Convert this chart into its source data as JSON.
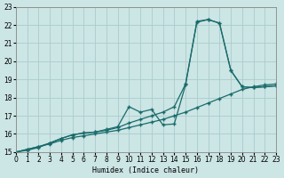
{
  "xlabel": "Humidex (Indice chaleur)",
  "bg_color": "#cce5e5",
  "grid_color": "#aacccc",
  "line_color": "#1a6b6b",
  "xlim": [
    0,
    23
  ],
  "ylim": [
    15,
    23
  ],
  "xticks": [
    0,
    1,
    2,
    3,
    4,
    5,
    6,
    7,
    8,
    9,
    10,
    11,
    12,
    13,
    14,
    15,
    16,
    17,
    18,
    19,
    20,
    21,
    22,
    23
  ],
  "yticks": [
    15,
    16,
    17,
    18,
    19,
    20,
    21,
    22,
    23
  ],
  "line1": {
    "x": [
      0,
      1,
      2,
      3,
      4,
      5,
      6,
      7,
      8,
      9,
      10,
      11,
      12,
      13,
      14,
      15,
      16,
      17,
      18,
      19,
      20,
      21,
      22,
      23
    ],
    "y": [
      15.0,
      15.15,
      15.3,
      15.45,
      15.65,
      15.8,
      15.9,
      16.0,
      16.1,
      16.2,
      16.35,
      16.5,
      16.65,
      16.8,
      17.0,
      17.2,
      17.45,
      17.7,
      17.95,
      18.2,
      18.45,
      18.6,
      18.7,
      18.75
    ]
  },
  "line2": {
    "x": [
      0,
      1,
      2,
      3,
      4,
      5,
      6,
      7,
      8,
      9,
      10,
      11,
      12,
      13,
      14,
      15,
      16,
      17,
      18,
      19,
      20,
      21,
      22,
      23
    ],
    "y": [
      15.0,
      15.15,
      15.3,
      15.5,
      15.75,
      15.95,
      16.05,
      16.1,
      16.2,
      16.35,
      16.6,
      16.8,
      17.0,
      17.2,
      17.5,
      18.75,
      22.15,
      22.3,
      22.1,
      19.5,
      18.6,
      18.55,
      18.6,
      18.65
    ]
  },
  "line3": {
    "x": [
      0,
      1,
      2,
      3,
      4,
      5,
      6,
      7,
      8,
      9,
      10,
      11,
      12,
      13,
      14,
      15,
      16,
      17,
      18,
      19,
      20,
      21,
      22,
      23
    ],
    "y": [
      15.0,
      15.1,
      15.25,
      15.5,
      15.75,
      15.95,
      16.05,
      16.1,
      16.25,
      16.4,
      17.5,
      17.2,
      17.35,
      16.5,
      16.55,
      18.7,
      22.2,
      22.3,
      22.1,
      19.5,
      18.6,
      18.55,
      18.6,
      18.65
    ]
  }
}
